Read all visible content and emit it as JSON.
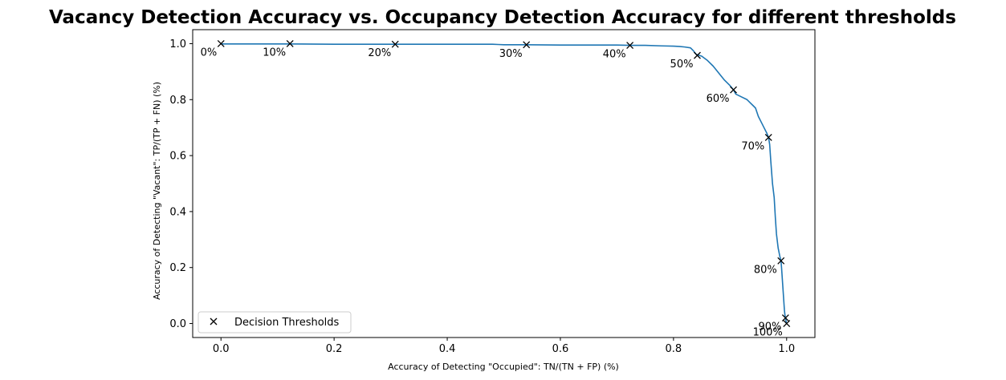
{
  "chart_data": {
    "type": "line",
    "title": "Vacancy Detection Accuracy vs. Occupancy Detection Accuracy for different thresholds",
    "xlabel": "Accuracy of Detecting \"Occupied\": TN/(TN + FP) (%)",
    "ylabel": "Accuracy of Detecting \"Vacant\": TP/(TP + FN) (%)",
    "xlim": [
      -0.05,
      1.05
    ],
    "ylim": [
      -0.05,
      1.05
    ],
    "xticks": [
      "0.0",
      "0.2",
      "0.4",
      "0.6",
      "0.8",
      "1.0"
    ],
    "yticks": [
      "0.0",
      "0.2",
      "0.4",
      "0.6",
      "0.8",
      "1.0"
    ],
    "grid": false,
    "legend": {
      "location": "lower-left",
      "entries": [
        "Decision Thresholds"
      ]
    },
    "line_color": "#1f77b4",
    "marker_color": "#000000",
    "curve": {
      "x": [
        0.0,
        0.05,
        0.122,
        0.2,
        0.308,
        0.4,
        0.48,
        0.49,
        0.5,
        0.54,
        0.6,
        0.65,
        0.7,
        0.723,
        0.75,
        0.78,
        0.8,
        0.81,
        0.82,
        0.83,
        0.835,
        0.84,
        0.85,
        0.86,
        0.87,
        0.88,
        0.89,
        0.9,
        0.906,
        0.91,
        0.92,
        0.93,
        0.935,
        0.94,
        0.945,
        0.95,
        0.955,
        0.96,
        0.965,
        0.968,
        0.97,
        0.972,
        0.975,
        0.978,
        0.98,
        0.982,
        0.985,
        0.988,
        0.99,
        0.991,
        0.992,
        0.993,
        0.994,
        0.995,
        0.996,
        0.997,
        0.998,
        0.999,
        1.0
      ],
      "y": [
        0.999,
        0.999,
        0.999,
        0.998,
        0.998,
        0.998,
        0.998,
        0.997,
        0.996,
        0.996,
        0.995,
        0.995,
        0.995,
        0.994,
        0.994,
        0.992,
        0.991,
        0.99,
        0.988,
        0.985,
        0.975,
        0.962,
        0.955,
        0.94,
        0.92,
        0.895,
        0.87,
        0.85,
        0.835,
        0.82,
        0.81,
        0.8,
        0.79,
        0.78,
        0.77,
        0.74,
        0.72,
        0.7,
        0.68,
        0.665,
        0.64,
        0.58,
        0.5,
        0.45,
        0.38,
        0.32,
        0.27,
        0.24,
        0.224,
        0.2,
        0.17,
        0.14,
        0.11,
        0.08,
        0.05,
        0.03,
        0.02,
        0.008,
        0.0
      ]
    },
    "thresholds": [
      {
        "label": "0%",
        "x": 0.0,
        "y": 1.0
      },
      {
        "label": "10%",
        "x": 0.122,
        "y": 1.0
      },
      {
        "label": "20%",
        "x": 0.308,
        "y": 0.998
      },
      {
        "label": "30%",
        "x": 0.54,
        "y": 0.996
      },
      {
        "label": "40%",
        "x": 0.723,
        "y": 0.994
      },
      {
        "label": "50%",
        "x": 0.842,
        "y": 0.958
      },
      {
        "label": "60%",
        "x": 0.906,
        "y": 0.835
      },
      {
        "label": "70%",
        "x": 0.968,
        "y": 0.665
      },
      {
        "label": "80%",
        "x": 0.99,
        "y": 0.224
      },
      {
        "label": "90%",
        "x": 0.998,
        "y": 0.02
      },
      {
        "label": "100%",
        "x": 1.0,
        "y": 0.0
      }
    ]
  }
}
